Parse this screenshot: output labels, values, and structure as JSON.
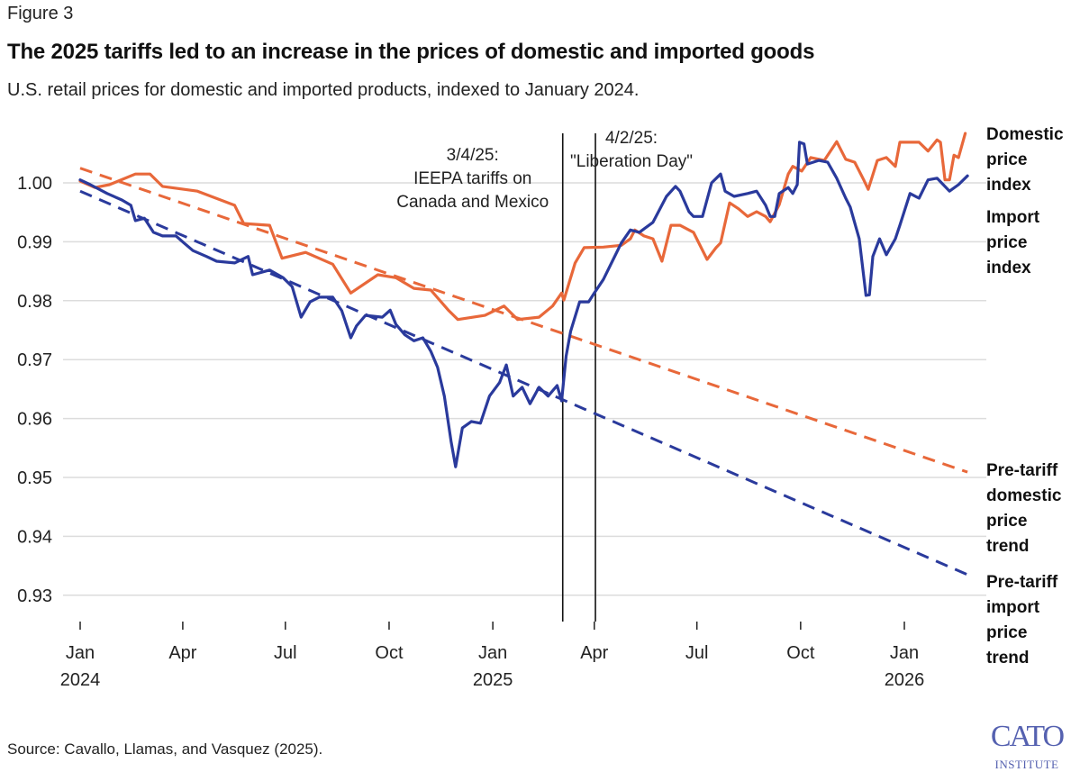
{
  "figure_label": "Figure 3",
  "title": "The 2025 tariffs led to an increase in the prices of domestic and imported goods",
  "subtitle": "U.S. retail prices for domestic and imported products, indexed to January 2024.",
  "source": "Source: Cavallo, Llamas, and Vasquez (2025).",
  "logo": {
    "line1": "CATO",
    "line2": "INSTITUTE"
  },
  "chart_data": {
    "type": "line",
    "title": "The 2025 tariffs led to an increase in the prices of domestic and imported goods",
    "subtitle": "U.S. retail prices for domestic and imported products, indexed to January 2024.",
    "xlabel": "",
    "ylabel": "",
    "ylim": [
      0.925,
      1.01
    ],
    "xlim": [
      "2023-12-20",
      "2026-03-05"
    ],
    "grid": "horizontal",
    "legend": "direct labels at right",
    "y_ticks": [
      "1.00",
      "0.99",
      "0.98",
      "0.97",
      "0.96",
      "0.95",
      "0.94",
      "0.93"
    ],
    "y_tick_values": [
      1.0,
      0.99,
      0.98,
      0.97,
      0.96,
      0.95,
      0.94,
      0.93
    ],
    "x_ticks": [
      {
        "date": "2024-01-01",
        "label": "Jan",
        "year": "2024"
      },
      {
        "date": "2024-04-01",
        "label": "Apr",
        "year": ""
      },
      {
        "date": "2024-07-01",
        "label": "Jul",
        "year": ""
      },
      {
        "date": "2024-10-01",
        "label": "Oct",
        "year": ""
      },
      {
        "date": "2025-01-01",
        "label": "Jan",
        "year": "2025"
      },
      {
        "date": "2025-04-01",
        "label": "Apr",
        "year": ""
      },
      {
        "date": "2025-07-01",
        "label": "Jul",
        "year": ""
      },
      {
        "date": "2025-10-01",
        "label": "Oct",
        "year": ""
      },
      {
        "date": "2026-01-01",
        "label": "Jan",
        "year": "2026"
      }
    ],
    "annotations": [
      {
        "date": "2025-03-04",
        "lines": [
          "3/4/25:",
          "IEEPA tariffs on",
          "Canada and Mexico"
        ]
      },
      {
        "date": "2025-04-02",
        "lines": [
          "4/2/25:",
          "\"Liberation Day\""
        ]
      }
    ],
    "series": [
      {
        "name": "Domestic price index",
        "label_lines": [
          "Domestic",
          "price",
          "index"
        ],
        "color": "#e8683a",
        "style": "solid",
        "points": [
          [
            "2024-01-01",
            1.0003
          ],
          [
            "2024-01-14",
            0.9992
          ],
          [
            "2024-01-27",
            0.9997
          ],
          [
            "2024-02-19",
            1.0015
          ],
          [
            "2024-03-03",
            1.0015
          ],
          [
            "2024-03-14",
            0.9994
          ],
          [
            "2024-04-14",
            0.9986
          ],
          [
            "2024-05-17",
            0.9962
          ],
          [
            "2024-05-25",
            0.9931
          ],
          [
            "2024-06-17",
            0.9928
          ],
          [
            "2024-06-28",
            0.9872
          ],
          [
            "2024-07-19",
            0.9882
          ],
          [
            "2024-08-12",
            0.9862
          ],
          [
            "2024-08-28",
            0.9813
          ],
          [
            "2024-09-21",
            0.9844
          ],
          [
            "2024-10-07",
            0.9839
          ],
          [
            "2024-10-23",
            0.9821
          ],
          [
            "2024-11-07",
            0.9818
          ],
          [
            "2024-11-23",
            0.9783
          ],
          [
            "2024-12-01",
            0.9768
          ],
          [
            "2024-12-25",
            0.9775
          ],
          [
            "2025-01-11",
            0.9791
          ],
          [
            "2025-01-23",
            0.9768
          ],
          [
            "2025-02-11",
            0.9772
          ],
          [
            "2025-02-23",
            0.9791
          ],
          [
            "2025-03-03",
            0.9813
          ],
          [
            "2025-03-05",
            0.9801
          ],
          [
            "2025-03-15",
            0.9864
          ],
          [
            "2025-03-23",
            0.989
          ],
          [
            "2025-04-09",
            0.9891
          ],
          [
            "2025-04-25",
            0.9894
          ],
          [
            "2025-05-03",
            0.9905
          ],
          [
            "2025-05-07",
            0.992
          ],
          [
            "2025-05-15",
            0.991
          ],
          [
            "2025-05-23",
            0.9905
          ],
          [
            "2025-05-31",
            0.9867
          ],
          [
            "2025-06-08",
            0.9928
          ],
          [
            "2025-06-16",
            0.9928
          ],
          [
            "2025-06-28",
            0.9916
          ],
          [
            "2025-07-10",
            0.987
          ],
          [
            "2025-07-18",
            0.989
          ],
          [
            "2025-07-22",
            0.9898
          ],
          [
            "2025-07-30",
            0.9966
          ],
          [
            "2025-08-07",
            0.9956
          ],
          [
            "2025-08-15",
            0.9943
          ],
          [
            "2025-08-23",
            0.9951
          ],
          [
            "2025-08-31",
            0.9943
          ],
          [
            "2025-09-04",
            0.9934
          ],
          [
            "2025-09-12",
            0.9963
          ],
          [
            "2025-09-20",
            1.0015
          ],
          [
            "2025-09-24",
            1.0028
          ],
          [
            "2025-10-02",
            1.002
          ],
          [
            "2025-10-10",
            1.0043
          ],
          [
            "2025-10-22",
            1.0038
          ],
          [
            "2025-11-02",
            1.007
          ],
          [
            "2025-11-10",
            1.004
          ],
          [
            "2025-11-18",
            1.0035
          ],
          [
            "2025-11-26",
            1.0005
          ],
          [
            "2025-11-30",
            0.9989
          ],
          [
            "2025-12-08",
            1.0038
          ],
          [
            "2025-12-16",
            1.0043
          ],
          [
            "2025-12-24",
            1.0028
          ],
          [
            "2025-12-28",
            1.0069
          ],
          [
            "2026-01-14",
            1.0069
          ],
          [
            "2026-01-22",
            1.0054
          ],
          [
            "2026-01-30",
            1.0073
          ],
          [
            "2026-02-02",
            1.0069
          ],
          [
            "2026-02-06",
            1.0005
          ],
          [
            "2026-02-10",
            1.0005
          ],
          [
            "2026-02-14",
            1.0047
          ],
          [
            "2026-02-18",
            1.0043
          ],
          [
            "2026-02-24",
            1.0084
          ]
        ]
      },
      {
        "name": "Import price index",
        "label_lines": [
          "Import",
          "price",
          "index"
        ],
        "color": "#2a3a9c",
        "style": "solid",
        "points": [
          [
            "2024-01-01",
            1.0005
          ],
          [
            "2024-01-10",
            0.9997
          ],
          [
            "2024-01-25",
            0.9982
          ],
          [
            "2024-02-07",
            0.9971
          ],
          [
            "2024-02-15",
            0.9962
          ],
          [
            "2024-02-19",
            0.9936
          ],
          [
            "2024-02-27",
            0.994
          ],
          [
            "2024-03-06",
            0.9916
          ],
          [
            "2024-03-14",
            0.991
          ],
          [
            "2024-03-26",
            0.991
          ],
          [
            "2024-04-02",
            0.9898
          ],
          [
            "2024-04-10",
            0.9885
          ],
          [
            "2024-04-22",
            0.9875
          ],
          [
            "2024-05-01",
            0.9867
          ],
          [
            "2024-05-17",
            0.9864
          ],
          [
            "2024-05-29",
            0.9875
          ],
          [
            "2024-06-02",
            0.9844
          ],
          [
            "2024-06-17",
            0.9852
          ],
          [
            "2024-06-29",
            0.9839
          ],
          [
            "2024-07-07",
            0.9824
          ],
          [
            "2024-07-15",
            0.9772
          ],
          [
            "2024-07-23",
            0.9798
          ],
          [
            "2024-07-31",
            0.9806
          ],
          [
            "2024-08-12",
            0.9806
          ],
          [
            "2024-08-20",
            0.9783
          ],
          [
            "2024-08-28",
            0.9737
          ],
          [
            "2024-09-02",
            0.9757
          ],
          [
            "2024-09-10",
            0.9775
          ],
          [
            "2024-09-25",
            0.9772
          ],
          [
            "2024-10-02",
            0.9784
          ],
          [
            "2024-10-07",
            0.976
          ],
          [
            "2024-10-15",
            0.9742
          ],
          [
            "2024-10-23",
            0.9732
          ],
          [
            "2024-10-31",
            0.9737
          ],
          [
            "2024-11-07",
            0.9714
          ],
          [
            "2024-11-13",
            0.9687
          ],
          [
            "2024-11-19",
            0.9638
          ],
          [
            "2024-11-25",
            0.9561
          ],
          [
            "2024-11-29",
            0.9518
          ],
          [
            "2024-12-05",
            0.9584
          ],
          [
            "2024-12-13",
            0.9595
          ],
          [
            "2024-12-21",
            0.9592
          ],
          [
            "2024-12-29",
            0.9638
          ],
          [
            "2025-01-07",
            0.9661
          ],
          [
            "2025-01-13",
            0.9691
          ],
          [
            "2025-01-19",
            0.9638
          ],
          [
            "2025-01-27",
            0.9653
          ],
          [
            "2025-02-03",
            0.9625
          ],
          [
            "2025-02-11",
            0.9653
          ],
          [
            "2025-02-19",
            0.9638
          ],
          [
            "2025-02-27",
            0.9656
          ],
          [
            "2025-03-03",
            0.963
          ],
          [
            "2025-03-07",
            0.9706
          ],
          [
            "2025-03-11",
            0.9748
          ],
          [
            "2025-03-19",
            0.9798
          ],
          [
            "2025-03-27",
            0.9798
          ],
          [
            "2025-04-01",
            0.9813
          ],
          [
            "2025-04-09",
            0.9836
          ],
          [
            "2025-04-17",
            0.9867
          ],
          [
            "2025-04-25",
            0.9898
          ],
          [
            "2025-05-03",
            0.992
          ],
          [
            "2025-05-11",
            0.9916
          ],
          [
            "2025-05-23",
            0.9933
          ],
          [
            "2025-06-04",
            0.9977
          ],
          [
            "2025-06-12",
            0.9994
          ],
          [
            "2025-06-16",
            0.9986
          ],
          [
            "2025-06-24",
            0.9951
          ],
          [
            "2025-06-28",
            0.9943
          ],
          [
            "2025-07-06",
            0.9943
          ],
          [
            "2025-07-14",
            1.0
          ],
          [
            "2025-07-22",
            1.0015
          ],
          [
            "2025-07-26",
            0.9986
          ],
          [
            "2025-08-03",
            0.9977
          ],
          [
            "2025-08-15",
            0.9982
          ],
          [
            "2025-08-23",
            0.9986
          ],
          [
            "2025-08-31",
            0.9962
          ],
          [
            "2025-09-04",
            0.9943
          ],
          [
            "2025-09-08",
            0.9943
          ],
          [
            "2025-09-12",
            0.9982
          ],
          [
            "2025-09-20",
            0.9992
          ],
          [
            "2025-09-24",
            0.9982
          ],
          [
            "2025-09-28",
            0.9997
          ],
          [
            "2025-09-30",
            1.0069
          ],
          [
            "2025-10-04",
            1.0066
          ],
          [
            "2025-10-07",
            1.0032
          ],
          [
            "2025-10-17",
            1.0038
          ],
          [
            "2025-10-25",
            1.0035
          ],
          [
            "2025-11-02",
            1.0008
          ],
          [
            "2025-11-10",
            0.9974
          ],
          [
            "2025-11-14",
            0.9959
          ],
          [
            "2025-11-22",
            0.9905
          ],
          [
            "2025-11-28",
            0.9809
          ],
          [
            "2025-12-01",
            0.981
          ],
          [
            "2025-12-04",
            0.9875
          ],
          [
            "2025-12-10",
            0.9905
          ],
          [
            "2025-12-16",
            0.9878
          ],
          [
            "2025-12-24",
            0.9905
          ],
          [
            "2025-12-28",
            0.9928
          ],
          [
            "2026-01-06",
            0.9982
          ],
          [
            "2026-01-14",
            0.9974
          ],
          [
            "2026-01-22",
            1.0005
          ],
          [
            "2026-01-30",
            1.0008
          ],
          [
            "2026-02-02",
            1.0002
          ],
          [
            "2026-02-10",
            0.9986
          ],
          [
            "2026-02-18",
            0.9997
          ],
          [
            "2026-02-26",
            1.0012
          ]
        ]
      },
      {
        "name": "Pre-tariff domestic price trend",
        "label_lines": [
          "Pre-tariff",
          "domestic",
          "price",
          "trend"
        ],
        "color": "#e8683a",
        "style": "dashed",
        "points": [
          [
            "2024-01-01",
            1.0025
          ],
          [
            "2026-02-26",
            0.9509
          ]
        ]
      },
      {
        "name": "Pre-tariff import price trend",
        "label_lines": [
          "Pre-tariff",
          "import",
          "price",
          "trend"
        ],
        "color": "#2a3a9c",
        "style": "dashed",
        "points": [
          [
            "2024-01-01",
            0.9986
          ],
          [
            "2026-02-26",
            0.9335
          ]
        ]
      }
    ]
  }
}
